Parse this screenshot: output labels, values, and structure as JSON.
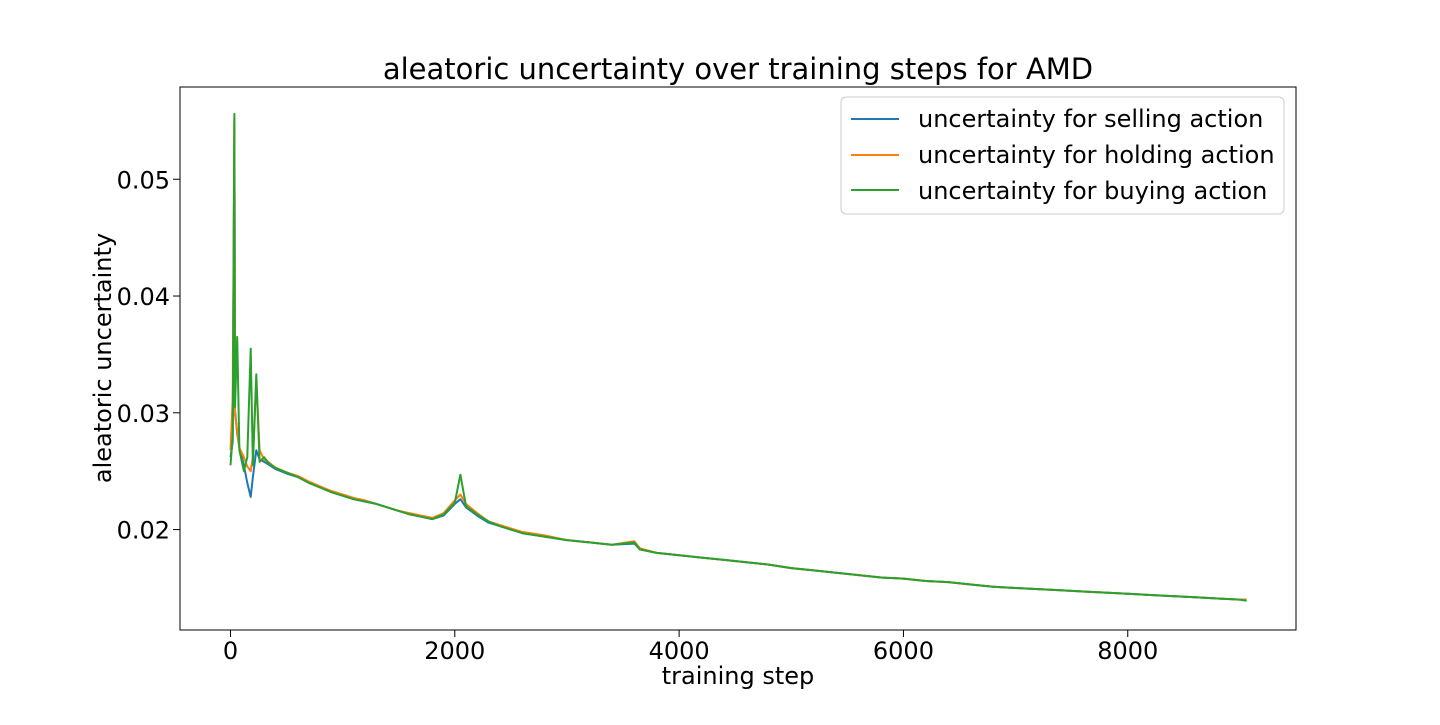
{
  "chart_data": {
    "type": "line",
    "title": "aleatoric uncertainty over training steps for AMD",
    "xlabel": "training step",
    "ylabel": "aleatoric uncertainty",
    "xlim": [
      -450,
      9500
    ],
    "ylim": [
      0.0114,
      0.0579
    ],
    "xticks": [
      0,
      2000,
      4000,
      6000,
      8000
    ],
    "xtick_labels": [
      "0",
      "2000",
      "4000",
      "6000",
      "8000"
    ],
    "yticks": [
      0.02,
      0.03,
      0.04,
      0.05
    ],
    "ytick_labels": [
      "0.02",
      "0.03",
      "0.04",
      "0.05"
    ],
    "grid": false,
    "legend_position": "top-right",
    "series": [
      {
        "name": "uncertainty for selling action",
        "color": "#1f77b4",
        "x": [
          0,
          20,
          35,
          40,
          60,
          80,
          120,
          150,
          180,
          200,
          230,
          260,
          300,
          350,
          400,
          500,
          600,
          700,
          800,
          900,
          1000,
          1100,
          1200,
          1300,
          1400,
          1500,
          1600,
          1700,
          1800,
          1900,
          2000,
          2050,
          2100,
          2200,
          2300,
          2400,
          2500,
          2600,
          2800,
          3000,
          3200,
          3400,
          3600,
          3650,
          3800,
          4000,
          4200,
          4400,
          4600,
          4800,
          5000,
          5200,
          5400,
          5600,
          5800,
          6000,
          6200,
          6400,
          6600,
          6800,
          7000,
          7200,
          7400,
          7600,
          7800,
          8000,
          8200,
          8400,
          8600,
          8800,
          9000,
          9060
        ],
        "y": [
          0.0262,
          0.0275,
          0.0548,
          0.0302,
          0.0282,
          0.027,
          0.0255,
          0.024,
          0.0228,
          0.0245,
          0.0268,
          0.026,
          0.0258,
          0.0255,
          0.0252,
          0.0248,
          0.0245,
          0.024,
          0.0236,
          0.0232,
          0.0229,
          0.0226,
          0.0224,
          0.0222,
          0.0219,
          0.0216,
          0.0213,
          0.0211,
          0.0209,
          0.0212,
          0.0222,
          0.0226,
          0.0219,
          0.0212,
          0.0206,
          0.0203,
          0.02,
          0.0197,
          0.0194,
          0.0191,
          0.0189,
          0.0187,
          0.0188,
          0.0183,
          0.018,
          0.0178,
          0.0176,
          0.0174,
          0.0172,
          0.017,
          0.0167,
          0.0165,
          0.0163,
          0.0161,
          0.0159,
          0.0158,
          0.0156,
          0.0155,
          0.0153,
          0.0151,
          0.015,
          0.0149,
          0.0148,
          0.0147,
          0.0146,
          0.0145,
          0.0144,
          0.0143,
          0.0142,
          0.0141,
          0.014,
          0.014
        ]
      },
      {
        "name": "uncertainty for holding action",
        "color": "#ff7f0e",
        "x": [
          0,
          20,
          35,
          40,
          60,
          80,
          120,
          150,
          180,
          200,
          230,
          260,
          300,
          350,
          400,
          500,
          600,
          700,
          800,
          900,
          1000,
          1100,
          1200,
          1300,
          1400,
          1500,
          1600,
          1700,
          1800,
          1900,
          2000,
          2050,
          2100,
          2200,
          2300,
          2400,
          2500,
          2600,
          2800,
          3000,
          3200,
          3400,
          3600,
          3650,
          3800,
          4000,
          4200,
          4400,
          4600,
          4800,
          5000,
          5200,
          5400,
          5600,
          5800,
          6000,
          6200,
          6400,
          6600,
          6800,
          7000,
          7200,
          7400,
          7600,
          7800,
          8000,
          8200,
          8400,
          8600,
          8800,
          9000,
          9060
        ],
        "y": [
          0.0268,
          0.0312,
          0.0552,
          0.0298,
          0.0285,
          0.027,
          0.0262,
          0.0254,
          0.025,
          0.0262,
          0.0328,
          0.0268,
          0.026,
          0.0257,
          0.0253,
          0.0249,
          0.0246,
          0.0241,
          0.0237,
          0.0233,
          0.023,
          0.0227,
          0.0225,
          0.0222,
          0.0219,
          0.0216,
          0.0214,
          0.0212,
          0.021,
          0.0214,
          0.0225,
          0.023,
          0.0222,
          0.0214,
          0.0207,
          0.0204,
          0.0201,
          0.0198,
          0.0195,
          0.0191,
          0.0189,
          0.0187,
          0.019,
          0.0184,
          0.018,
          0.0178,
          0.0176,
          0.0174,
          0.0172,
          0.017,
          0.0167,
          0.0165,
          0.0163,
          0.0161,
          0.0159,
          0.0158,
          0.0156,
          0.0155,
          0.0153,
          0.0151,
          0.015,
          0.0149,
          0.0148,
          0.0147,
          0.0146,
          0.0145,
          0.0144,
          0.0143,
          0.0142,
          0.0141,
          0.014,
          0.014
        ]
      },
      {
        "name": "uncertainty for buying action",
        "color": "#2ca02c",
        "x": [
          0,
          20,
          35,
          40,
          60,
          80,
          120,
          150,
          180,
          200,
          230,
          260,
          300,
          350,
          400,
          500,
          600,
          700,
          800,
          900,
          1000,
          1100,
          1200,
          1300,
          1400,
          1500,
          1600,
          1700,
          1800,
          1900,
          2000,
          2050,
          2100,
          2200,
          2300,
          2400,
          2500,
          2600,
          2800,
          3000,
          3200,
          3400,
          3600,
          3650,
          3800,
          4000,
          4200,
          4400,
          4600,
          4800,
          5000,
          5200,
          5400,
          5600,
          5800,
          6000,
          6200,
          6400,
          6600,
          6800,
          7000,
          7200,
          7400,
          7600,
          7800,
          8000,
          8200,
          8400,
          8600,
          8800,
          9000,
          9060
        ],
        "y": [
          0.0255,
          0.028,
          0.0556,
          0.0305,
          0.0365,
          0.0268,
          0.025,
          0.0262,
          0.0355,
          0.0255,
          0.0333,
          0.0258,
          0.0262,
          0.0256,
          0.0253,
          0.0249,
          0.0245,
          0.024,
          0.0236,
          0.0232,
          0.0229,
          0.0226,
          0.0224,
          0.0222,
          0.0219,
          0.0216,
          0.0213,
          0.0211,
          0.0209,
          0.0213,
          0.0223,
          0.0247,
          0.022,
          0.0213,
          0.0207,
          0.0203,
          0.02,
          0.0197,
          0.0194,
          0.0191,
          0.0189,
          0.0187,
          0.0189,
          0.0183,
          0.018,
          0.0178,
          0.0176,
          0.0174,
          0.0172,
          0.017,
          0.0167,
          0.0165,
          0.0163,
          0.0161,
          0.0159,
          0.0158,
          0.0156,
          0.0155,
          0.0153,
          0.0151,
          0.015,
          0.0149,
          0.0148,
          0.0147,
          0.0146,
          0.0145,
          0.0144,
          0.0143,
          0.0142,
          0.0141,
          0.014,
          0.0139
        ]
      }
    ]
  }
}
